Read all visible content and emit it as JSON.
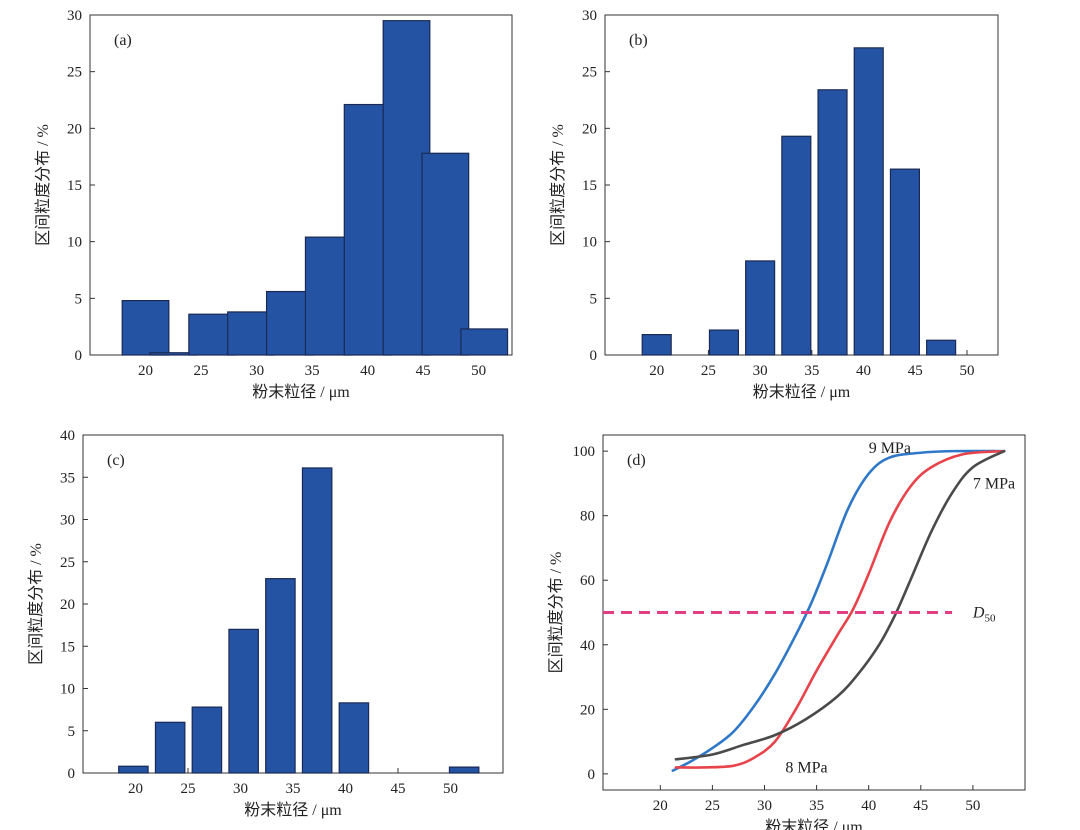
{
  "chart_data": [
    {
      "type": "bar",
      "panel_label": "(a)",
      "xlabel": "粉末粒径 / μm",
      "ylabel": "区间粒度分布 / %",
      "xlim": [
        15,
        53
      ],
      "ylim": [
        0,
        30
      ],
      "x_ticks": [
        20,
        25,
        30,
        35,
        40,
        45,
        50
      ],
      "y_ticks": [
        0,
        5,
        10,
        15,
        20,
        25,
        30
      ],
      "bar_color": "#2553a3",
      "bar_width": 4.2,
      "x": [
        20,
        22.5,
        26,
        29.5,
        33,
        36.5,
        40,
        43.5,
        47,
        50.5
      ],
      "values": [
        4.8,
        0.2,
        3.6,
        3.8,
        5.6,
        10.4,
        22.1,
        29.5,
        17.8,
        2.3
      ]
    },
    {
      "type": "bar",
      "panel_label": "(b)",
      "xlabel": "粉末粒径 / μm",
      "ylabel": "区间粒度分布 / %",
      "xlim": [
        15,
        53
      ],
      "ylim": [
        0,
        30
      ],
      "x_ticks": [
        20,
        25,
        30,
        35,
        40,
        45,
        50
      ],
      "y_ticks": [
        0,
        5,
        10,
        15,
        20,
        25,
        30
      ],
      "bar_color": "#2553a3",
      "bar_width": 2.8,
      "x": [
        20,
        26.5,
        30,
        33.5,
        37,
        40.5,
        44,
        47.5
      ],
      "values": [
        1.8,
        2.2,
        8.3,
        19.3,
        23.4,
        27.1,
        16.4,
        1.3
      ]
    },
    {
      "type": "bar",
      "panel_label": "(c)",
      "xlabel": "粉末粒径 / μm",
      "ylabel": "区间粒度分布 / %",
      "xlim": [
        15,
        55
      ],
      "ylim": [
        0,
        40
      ],
      "x_ticks": [
        20,
        25,
        30,
        35,
        40,
        45,
        50
      ],
      "y_ticks": [
        0,
        5,
        10,
        15,
        20,
        25,
        30,
        35,
        40
      ],
      "bar_color": "#2553a3",
      "bar_width": 2.8,
      "x": [
        19.8,
        23.3,
        26.8,
        30.3,
        33.8,
        37.3,
        40.8,
        51.3
      ],
      "values": [
        0.8,
        6.0,
        7.8,
        17.0,
        23.0,
        36.1,
        8.3,
        0.7
      ]
    },
    {
      "type": "line",
      "panel_label": "(d)",
      "xlabel": "粉末粒径 / μm",
      "ylabel": "区间粒度分布 / %",
      "xlim": [
        14.5,
        55
      ],
      "ylim": [
        -5,
        105
      ],
      "x_ticks": [
        20,
        25,
        30,
        35,
        40,
        45,
        50
      ],
      "y_ticks": [
        0,
        20,
        40,
        60,
        80,
        100
      ],
      "series": [
        {
          "name": "9 MPa",
          "color": "#2f78c8",
          "x": [
            21.2,
            23,
            25,
            27,
            29,
            31,
            33,
            34.5,
            36,
            38,
            40,
            42,
            45,
            48,
            53
          ],
          "y": [
            1,
            4,
            8,
            13,
            21,
            31,
            43,
            53,
            65,
            82,
            93,
            98,
            99.5,
            100,
            100
          ]
        },
        {
          "name": "8 MPa",
          "color": "#e8434b",
          "x": [
            21.5,
            24,
            27,
            29,
            31,
            33,
            35,
            37,
            38.5,
            40,
            42,
            44,
            46,
            49,
            53
          ],
          "y": [
            2,
            2,
            2.5,
            5,
            10,
            20,
            32,
            43,
            51,
            62,
            78,
            89,
            95,
            99,
            100
          ]
        },
        {
          "name": "7 MPa",
          "color": "#4a4a4a",
          "x": [
            21.5,
            25,
            28,
            31,
            34,
            37,
            39,
            41,
            42.5,
            44,
            46,
            48,
            50,
            53
          ],
          "y": [
            4.5,
            6,
            9,
            12,
            17,
            24,
            31,
            40,
            49,
            60,
            75,
            87,
            95,
            100
          ]
        },
        {
          "name": "D50",
          "color": "#e33d83",
          "dashed": true,
          "x": [
            14.5,
            48
          ],
          "y": [
            50,
            50
          ]
        }
      ],
      "annotations": [
        {
          "text": "9 MPa",
          "x": 40,
          "y": 101
        },
        {
          "text": "7 MPa",
          "x": 50,
          "y": 90
        },
        {
          "text": "8 MPa",
          "x": 32,
          "y": 2
        },
        {
          "text": "D",
          "subscript": "50",
          "x": 50,
          "y": 50
        }
      ]
    }
  ]
}
